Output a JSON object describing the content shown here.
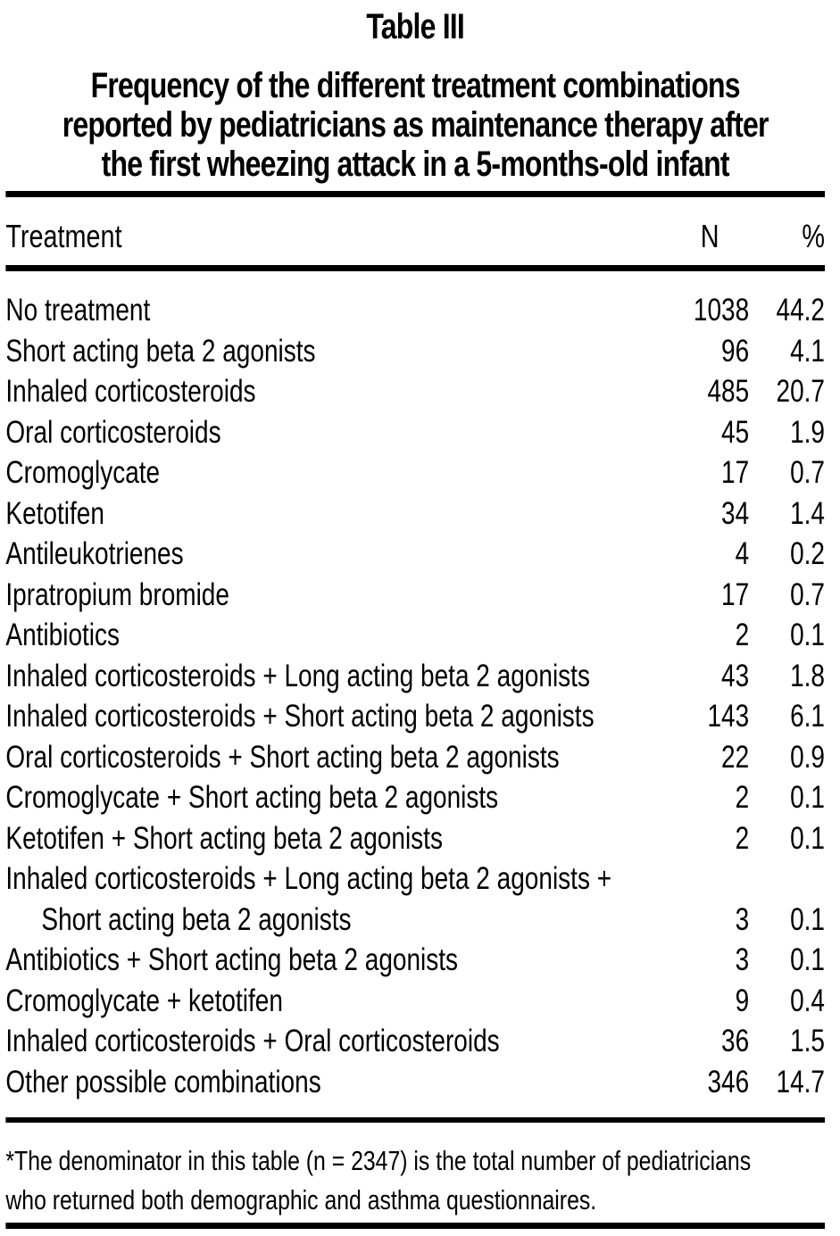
{
  "page": {
    "background_color": "#ffffff",
    "text_color": "#000000"
  },
  "table_label": "Table III",
  "title": {
    "line1": "Frequency of the different treatment combinations",
    "line2": "reported by pediatricians as maintenance therapy after",
    "line3": "the first wheezing attack in a 5-months-old infant"
  },
  "table": {
    "columns": {
      "treatment": "Treatment",
      "n": "N",
      "pct": "%"
    },
    "rows": [
      {
        "label": "No treatment",
        "n": "1038",
        "pct": "44.2"
      },
      {
        "label": "Short acting beta 2 agonists",
        "n": "96",
        "pct": "4.1"
      },
      {
        "label": "Inhaled corticosteroids",
        "n": "485",
        "pct": "20.7"
      },
      {
        "label": "Oral corticosteroids",
        "n": "45",
        "pct": "1.9"
      },
      {
        "label": "Cromoglycate",
        "n": "17",
        "pct": "0.7"
      },
      {
        "label": "Ketotifen",
        "n": "34",
        "pct": "1.4"
      },
      {
        "label": "Antileukotrienes",
        "n": "4",
        "pct": "0.2"
      },
      {
        "label": "Ipratropium bromide",
        "n": "17",
        "pct": "0.7"
      },
      {
        "label": "Antibiotics",
        "n": "2",
        "pct": "0.1"
      },
      {
        "label": "Inhaled corticosteroids + Long acting beta 2 agonists",
        "n": "43",
        "pct": "1.8"
      },
      {
        "label": "Inhaled corticosteroids + Short acting beta 2 agonists",
        "n": "143",
        "pct": "6.1"
      },
      {
        "label": "Oral corticosteroids + Short acting beta 2 agonists",
        "n": "22",
        "pct": "0.9"
      },
      {
        "label": "Cromoglycate + Short acting beta 2 agonists",
        "n": "2",
        "pct": "0.1"
      },
      {
        "label": "Ketotifen + Short acting beta 2 agonists",
        "n": "2",
        "pct": "0.1"
      },
      {
        "label": "Inhaled corticosteroids + Long acting beta 2 agonists +",
        "label2": "Short acting beta 2 agonists",
        "n": "3",
        "pct": "0.1"
      },
      {
        "label": "Antibiotics + Short acting beta 2 agonists",
        "n": "3",
        "pct": "0.1"
      },
      {
        "label": "Cromoglycate + ketotifen",
        "n": "9",
        "pct": "0.4"
      },
      {
        "label": "Inhaled corticosteroids + Oral corticosteroids",
        "n": "36",
        "pct": "1.5"
      },
      {
        "label": "Other possible combinations",
        "n": "346",
        "pct": "14.7"
      }
    ]
  },
  "footnote": {
    "line1": "*The denominator in this table (n = 2347) is the total number of pediatricians",
    "line2": "who returned both demographic and asthma questionnaires."
  },
  "chart_data": {
    "type": "table",
    "title": "Frequency of the different treatment combinations reported by pediatricians as maintenance therapy after the first wheezing attack in a 5-months-old infant",
    "columns": [
      "Treatment",
      "N",
      "%"
    ],
    "categories": [
      "No treatment",
      "Short acting beta 2 agonists",
      "Inhaled corticosteroids",
      "Oral corticosteroids",
      "Cromoglycate",
      "Ketotifen",
      "Antileukotrienes",
      "Ipratropium bromide",
      "Antibiotics",
      "Inhaled corticosteroids + Long acting beta 2 agonists",
      "Inhaled corticosteroids + Short acting beta 2 agonists",
      "Oral corticosteroids + Short acting beta 2 agonists",
      "Cromoglycate + Short acting beta 2 agonists",
      "Ketotifen + Short acting beta 2 agonists",
      "Inhaled corticosteroids + Long acting beta 2 agonists + Short acting beta 2 agonists",
      "Antibiotics + Short acting beta 2 agonists",
      "Cromoglycate + ketotifen",
      "Inhaled corticosteroids + Oral corticosteroids",
      "Other possible combinations"
    ],
    "series": [
      {
        "name": "N",
        "values": [
          1038,
          96,
          485,
          45,
          17,
          34,
          4,
          17,
          2,
          43,
          143,
          22,
          2,
          2,
          3,
          3,
          9,
          36,
          346
        ]
      },
      {
        "name": "%",
        "values": [
          44.2,
          4.1,
          20.7,
          1.9,
          0.7,
          1.4,
          0.2,
          0.7,
          0.1,
          1.8,
          6.1,
          0.9,
          0.1,
          0.1,
          0.1,
          0.1,
          0.4,
          1.5,
          14.7
        ]
      }
    ]
  }
}
